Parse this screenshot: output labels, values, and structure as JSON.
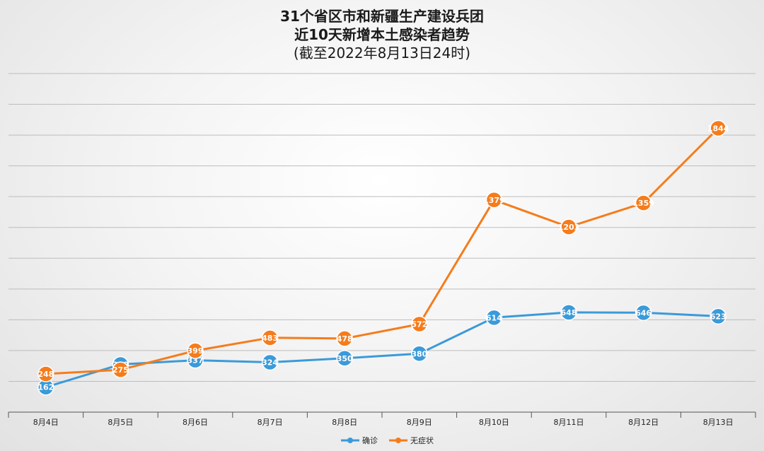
{
  "chart_data": {
    "type": "line",
    "title": "31个省区市和新疆生产建设兵团",
    "subtitle": "近10天新增本土感染者趋势",
    "subtitle2": "(截至2022年8月13日24时)",
    "categories": [
      "8月4日",
      "8月5日",
      "8月6日",
      "8月7日",
      "8月8日",
      "8月9日",
      "8月10日",
      "8月11日",
      "8月12日",
      "8月13日"
    ],
    "series": [
      {
        "name": "确诊",
        "color": "#3b9ad9",
        "values": [
          162,
          310,
          337,
          324,
          350,
          380,
          614,
          648,
          646,
          623
        ]
      },
      {
        "name": "无症状",
        "color": "#f57c1c",
        "values": [
          248,
          275,
          399,
          483,
          478,
          572,
          1379,
          1203,
          1359,
          1844
        ]
      }
    ],
    "ylim": [
      0,
      2200
    ],
    "grid": true,
    "legend": "bottom"
  }
}
